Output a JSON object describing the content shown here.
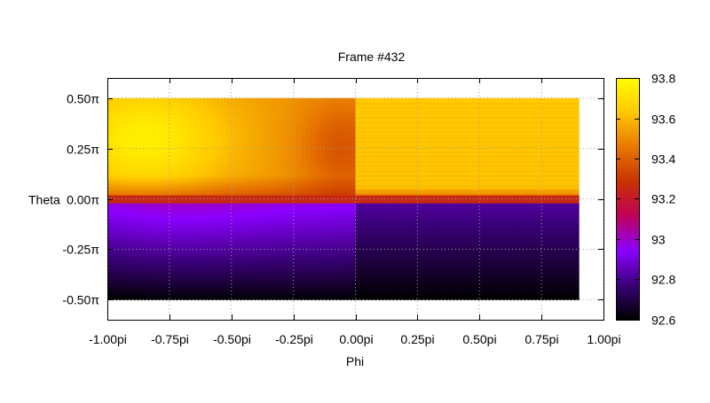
{
  "chart_data": {
    "type": "heatmap",
    "title": "Frame #432",
    "xlabel": "Phi",
    "ylabel": "Theta",
    "x_range": [
      -1.0,
      1.0
    ],
    "y_range": [
      -0.6,
      0.6
    ],
    "data_extent": {
      "x": [
        -1.0,
        0.9
      ],
      "y": [
        -0.5,
        0.5
      ]
    },
    "x_ticks": [
      {
        "value": -1.0,
        "label": "-1.00pi"
      },
      {
        "value": -0.75,
        "label": "-0.75pi"
      },
      {
        "value": -0.5,
        "label": "-0.50pi"
      },
      {
        "value": -0.25,
        "label": "-0.25pi"
      },
      {
        "value": 0.0,
        "label": "0.00pi"
      },
      {
        "value": 0.25,
        "label": "0.25pi"
      },
      {
        "value": 0.5,
        "label": "0.50pi"
      },
      {
        "value": 0.75,
        "label": "0.75pi"
      },
      {
        "value": 1.0,
        "label": "1.00pi"
      }
    ],
    "y_ticks": [
      {
        "value": 0.5,
        "label": "0.50π"
      },
      {
        "value": 0.25,
        "label": "0.25π"
      },
      {
        "value": 0.0,
        "label": "0.00π"
      },
      {
        "value": -0.25,
        "label": "-0.25π"
      },
      {
        "value": -0.5,
        "label": "-0.50π"
      }
    ],
    "grid": true,
    "colorbar": {
      "min": 92.6,
      "max": 93.8,
      "ticks": [
        {
          "value": 93.8,
          "label": "93.8"
        },
        {
          "value": 93.6,
          "label": "93.6"
        },
        {
          "value": 93.4,
          "label": "93.4"
        },
        {
          "value": 93.2,
          "label": "93.2"
        },
        {
          "value": 93.0,
          "label": "93"
        },
        {
          "value": 92.8,
          "label": "92.8"
        },
        {
          "value": 92.6,
          "label": "92.6"
        }
      ],
      "palette": [
        "#000000",
        "#3a0078",
        "#8a00ff",
        "#c0005a",
        "#c83200",
        "#e87800",
        "#ffc800",
        "#ffff00"
      ]
    },
    "value_field": {
      "upper_left_peak": {
        "x": -0.85,
        "y": 0.3,
        "value": 93.75
      },
      "upper_left_dip": {
        "x": -0.05,
        "y": 0.25,
        "value": 93.4
      },
      "upper_right_value": 93.62,
      "lower_right_top": 92.82,
      "lower_bottom": 92.6,
      "lower_left_purple": 92.95,
      "equator_value": 93.25
    }
  }
}
